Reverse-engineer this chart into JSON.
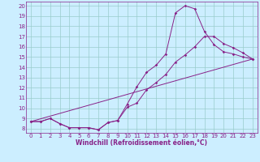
{
  "xlabel": "Windchill (Refroidissement éolien,°C)",
  "bg_color": "#cceeff",
  "line_color": "#882288",
  "grid_color": "#99cccc",
  "xlim": [
    -0.5,
    23.5
  ],
  "ylim": [
    7.6,
    20.4
  ],
  "xticks": [
    0,
    1,
    2,
    3,
    4,
    5,
    6,
    7,
    8,
    9,
    10,
    11,
    12,
    13,
    14,
    15,
    16,
    17,
    18,
    19,
    20,
    21,
    22,
    23
  ],
  "yticks": [
    8,
    9,
    10,
    11,
    12,
    13,
    14,
    15,
    16,
    17,
    18,
    19,
    20
  ],
  "line1_x": [
    0,
    1,
    2,
    3,
    4,
    5,
    6,
    7,
    8,
    9,
    10,
    11,
    12,
    13,
    14,
    15,
    16,
    17,
    18,
    19,
    20,
    21,
    22,
    23
  ],
  "line1_y": [
    8.7,
    8.7,
    9.0,
    8.5,
    8.1,
    8.1,
    8.1,
    7.9,
    8.6,
    8.8,
    10.4,
    12.1,
    13.5,
    14.2,
    15.3,
    19.3,
    20.0,
    19.7,
    17.5,
    16.2,
    15.5,
    15.3,
    15.0,
    14.8
  ],
  "line2_x": [
    0,
    1,
    2,
    3,
    4,
    5,
    6,
    7,
    8,
    9,
    10,
    11,
    12,
    13,
    14,
    15,
    16,
    17,
    18,
    19,
    20,
    21,
    22,
    23
  ],
  "line2_y": [
    8.7,
    8.7,
    9.0,
    8.5,
    8.1,
    8.1,
    8.1,
    7.9,
    8.6,
    8.8,
    10.1,
    10.5,
    11.8,
    12.5,
    13.3,
    14.5,
    15.2,
    16.0,
    17.0,
    17.0,
    16.3,
    15.9,
    15.4,
    14.8
  ],
  "line3_x": [
    0,
    23
  ],
  "line3_y": [
    8.7,
    14.8
  ]
}
